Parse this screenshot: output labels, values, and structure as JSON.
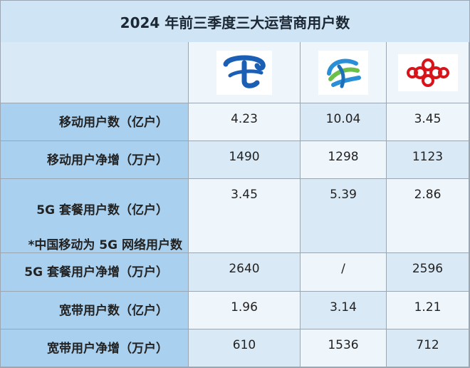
{
  "title": "2024 年前三季度三大运营商用户数",
  "icons": [
    "china-telecom-logo-icon",
    "china-mobile-logo-icon",
    "china-unicom-logo-icon"
  ],
  "colors": {
    "header_bg": "#cfe4f5",
    "label_bg": "#a9d0ef",
    "row_alt_a": "#d9e9f6",
    "row_alt_b": "#eef5fb"
  },
  "rows": [
    {
      "label": "移动用户数（亿户）",
      "values": [
        "4.23",
        "10.04",
        "3.45"
      ]
    },
    {
      "label": "移动用户净增（万户）",
      "values": [
        "1490",
        "1298",
        "1123"
      ]
    },
    {
      "label": "5G 套餐用户数（亿户）",
      "note": "*中国移动为 5G 网络用户数",
      "values": [
        "3.45",
        "5.39",
        "2.86"
      ]
    },
    {
      "label": "5G 套餐用户净增（万户）",
      "values": [
        "2640",
        "/",
        "2596"
      ]
    },
    {
      "label": "宽带用户数（亿户）",
      "values": [
        "1.96",
        "3.14",
        "1.21"
      ]
    },
    {
      "label": "宽带用户净增（万户）",
      "values": [
        "610",
        "1536",
        "712"
      ]
    }
  ]
}
